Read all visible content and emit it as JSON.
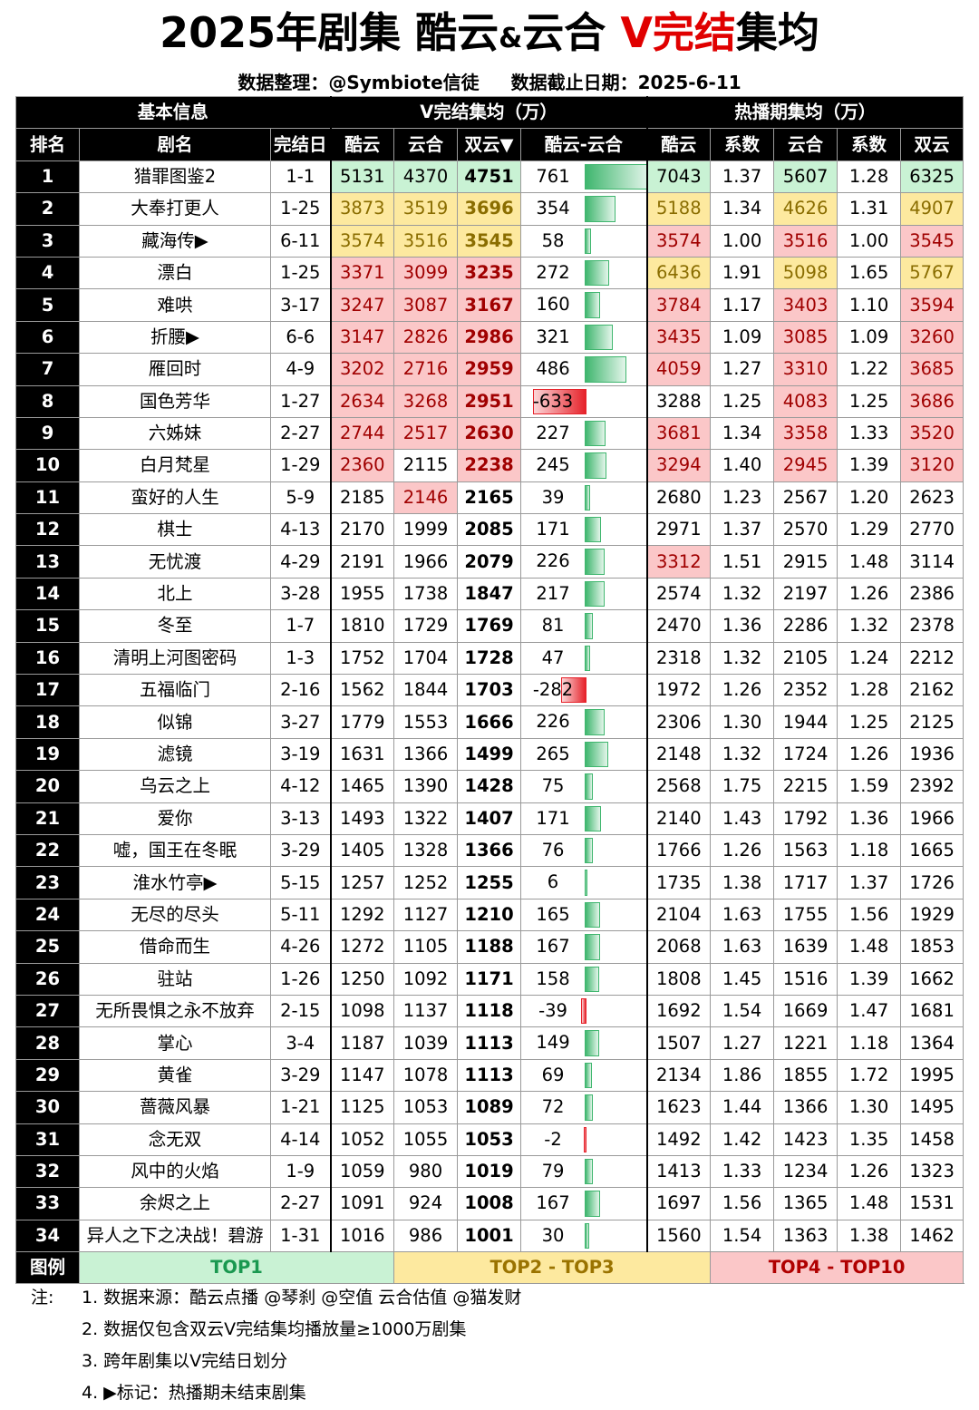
{
  "title": {
    "part1": "2025年剧集 酷云",
    "amp": "&",
    "part2": "云合 ",
    "red": "V完结",
    "part3": "集均"
  },
  "subtitle": {
    "left": "数据整理：@Symbiote信徒",
    "right": "数据截止日期：2025-6-11"
  },
  "groups": {
    "basic": "基本信息",
    "vend": "V完结集均（万）",
    "hot": "热播期集均（万）"
  },
  "headers": {
    "rank": "排名",
    "name": "剧名",
    "date": "完结日",
    "ky": "酷云",
    "yh": "云合",
    "sy": "双云▼",
    "diff": "酷云-云合",
    "hky": "酷云",
    "hk1": "系数",
    "hyh": "云合",
    "hk2": "系数",
    "hsy": "双云"
  },
  "colors": {
    "green": "#c9f2d4",
    "yellow": "#fde99f",
    "red": "#fbc7c8",
    "bar_pos": "#3fb66e",
    "bar_neg": "#e6222a"
  },
  "rows": [
    {
      "rank": "1",
      "name": "猎罪图鉴2",
      "date": "1-1",
      "ky": "5131",
      "yh": "4370",
      "sy": "4751",
      "diff": "761",
      "hky": "7043",
      "hk1": "1.37",
      "hyh": "5607",
      "hk2": "1.28",
      "hsy": "6325",
      "c": [
        "g",
        "g",
        "g",
        "",
        "g",
        "",
        "g",
        "",
        "g"
      ]
    },
    {
      "rank": "2",
      "name": "大奉打更人",
      "date": "1-25",
      "ky": "3873",
      "yh": "3519",
      "sy": "3696",
      "diff": "354",
      "hky": "5188",
      "hk1": "1.34",
      "hyh": "4626",
      "hk2": "1.31",
      "hsy": "4907",
      "c": [
        "y",
        "y",
        "y",
        "",
        "y",
        "",
        "y",
        "",
        "y"
      ]
    },
    {
      "rank": "3",
      "name": "藏海传▶",
      "date": "6-11",
      "ky": "3574",
      "yh": "3516",
      "sy": "3545",
      "diff": "58",
      "hky": "3574",
      "hk1": "1.00",
      "hyh": "3516",
      "hk2": "1.00",
      "hsy": "3545",
      "c": [
        "y",
        "y",
        "y",
        "",
        "r",
        "",
        "r",
        "",
        "r"
      ]
    },
    {
      "rank": "4",
      "name": "漂白",
      "date": "1-25",
      "ky": "3371",
      "yh": "3099",
      "sy": "3235",
      "diff": "272",
      "hky": "6436",
      "hk1": "1.91",
      "hyh": "5098",
      "hk2": "1.65",
      "hsy": "5767",
      "c": [
        "r",
        "r",
        "r",
        "",
        "y",
        "",
        "y",
        "",
        "y"
      ]
    },
    {
      "rank": "5",
      "name": "难哄",
      "date": "3-17",
      "ky": "3247",
      "yh": "3087",
      "sy": "3167",
      "diff": "160",
      "hky": "3784",
      "hk1": "1.17",
      "hyh": "3403",
      "hk2": "1.10",
      "hsy": "3594",
      "c": [
        "r",
        "r",
        "r",
        "",
        "r",
        "",
        "r",
        "",
        "r"
      ]
    },
    {
      "rank": "6",
      "name": "折腰▶",
      "date": "6-6",
      "ky": "3147",
      "yh": "2826",
      "sy": "2986",
      "diff": "321",
      "hky": "3435",
      "hk1": "1.09",
      "hyh": "3085",
      "hk2": "1.09",
      "hsy": "3260",
      "c": [
        "r",
        "r",
        "r",
        "",
        "r",
        "",
        "r",
        "",
        "r"
      ]
    },
    {
      "rank": "7",
      "name": "雁回时",
      "date": "4-9",
      "ky": "3202",
      "yh": "2716",
      "sy": "2959",
      "diff": "486",
      "hky": "4059",
      "hk1": "1.27",
      "hyh": "3310",
      "hk2": "1.22",
      "hsy": "3685",
      "c": [
        "r",
        "r",
        "r",
        "",
        "r",
        "",
        "r",
        "",
        "r"
      ]
    },
    {
      "rank": "8",
      "name": "国色芳华",
      "date": "1-27",
      "ky": "2634",
      "yh": "3268",
      "sy": "2951",
      "diff": "-633",
      "hky": "3288",
      "hk1": "1.25",
      "hyh": "4083",
      "hk2": "1.25",
      "hsy": "3686",
      "c": [
        "r",
        "r",
        "r",
        "",
        "",
        "",
        "r",
        "",
        "r"
      ]
    },
    {
      "rank": "9",
      "name": "六姊妹",
      "date": "2-27",
      "ky": "2744",
      "yh": "2517",
      "sy": "2630",
      "diff": "227",
      "hky": "3681",
      "hk1": "1.34",
      "hyh": "3358",
      "hk2": "1.33",
      "hsy": "3520",
      "c": [
        "r",
        "r",
        "r",
        "",
        "r",
        "",
        "r",
        "",
        "r"
      ]
    },
    {
      "rank": "10",
      "name": "白月梵星",
      "date": "1-29",
      "ky": "2360",
      "yh": "2115",
      "sy": "2238",
      "diff": "245",
      "hky": "3294",
      "hk1": "1.40",
      "hyh": "2945",
      "hk2": "1.39",
      "hsy": "3120",
      "c": [
        "r",
        "",
        "r",
        "",
        "r",
        "",
        "r",
        "",
        "r"
      ]
    },
    {
      "rank": "11",
      "name": "蛮好的人生",
      "date": "5-9",
      "ky": "2185",
      "yh": "2146",
      "sy": "2165",
      "diff": "39",
      "hky": "2680",
      "hk1": "1.23",
      "hyh": "2567",
      "hk2": "1.20",
      "hsy": "2623",
      "c": [
        "",
        "r",
        "",
        "",
        "",
        "",
        "",
        "",
        ""
      ]
    },
    {
      "rank": "12",
      "name": "棋士",
      "date": "4-13",
      "ky": "2170",
      "yh": "1999",
      "sy": "2085",
      "diff": "171",
      "hky": "2971",
      "hk1": "1.37",
      "hyh": "2570",
      "hk2": "1.29",
      "hsy": "2770",
      "c": [
        "",
        "",
        "",
        "",
        "",
        "",
        "",
        "",
        ""
      ]
    },
    {
      "rank": "13",
      "name": "无忧渡",
      "date": "4-29",
      "ky": "2191",
      "yh": "1966",
      "sy": "2079",
      "diff": "226",
      "hky": "3312",
      "hk1": "1.51",
      "hyh": "2915",
      "hk2": "1.48",
      "hsy": "3114",
      "c": [
        "",
        "",
        "",
        "",
        "r",
        "",
        "",
        "",
        ""
      ]
    },
    {
      "rank": "14",
      "name": "北上",
      "date": "3-28",
      "ky": "1955",
      "yh": "1738",
      "sy": "1847",
      "diff": "217",
      "hky": "2574",
      "hk1": "1.32",
      "hyh": "2197",
      "hk2": "1.26",
      "hsy": "2386",
      "c": [
        "",
        "",
        "",
        "",
        "",
        "",
        "",
        "",
        ""
      ]
    },
    {
      "rank": "15",
      "name": "冬至",
      "date": "1-7",
      "ky": "1810",
      "yh": "1729",
      "sy": "1769",
      "diff": "81",
      "hky": "2470",
      "hk1": "1.36",
      "hyh": "2286",
      "hk2": "1.32",
      "hsy": "2378",
      "c": [
        "",
        "",
        "",
        "",
        "",
        "",
        "",
        "",
        ""
      ]
    },
    {
      "rank": "16",
      "name": "清明上河图密码",
      "date": "1-3",
      "ky": "1752",
      "yh": "1704",
      "sy": "1728",
      "diff": "47",
      "hky": "2318",
      "hk1": "1.32",
      "hyh": "2105",
      "hk2": "1.24",
      "hsy": "2212",
      "c": [
        "",
        "",
        "",
        "",
        "",
        "",
        "",
        "",
        ""
      ]
    },
    {
      "rank": "17",
      "name": "五福临门",
      "date": "2-16",
      "ky": "1562",
      "yh": "1844",
      "sy": "1703",
      "diff": "-282",
      "hky": "1972",
      "hk1": "1.26",
      "hyh": "2352",
      "hk2": "1.28",
      "hsy": "2162",
      "c": [
        "",
        "",
        "",
        "",
        "",
        "",
        "",
        "",
        ""
      ]
    },
    {
      "rank": "18",
      "name": "似锦",
      "date": "3-27",
      "ky": "1779",
      "yh": "1553",
      "sy": "1666",
      "diff": "226",
      "hky": "2306",
      "hk1": "1.30",
      "hyh": "1944",
      "hk2": "1.25",
      "hsy": "2125",
      "c": [
        "",
        "",
        "",
        "",
        "",
        "",
        "",
        "",
        ""
      ]
    },
    {
      "rank": "19",
      "name": "滤镜",
      "date": "3-19",
      "ky": "1631",
      "yh": "1366",
      "sy": "1499",
      "diff": "265",
      "hky": "2148",
      "hk1": "1.32",
      "hyh": "1724",
      "hk2": "1.26",
      "hsy": "1936",
      "c": [
        "",
        "",
        "",
        "",
        "",
        "",
        "",
        "",
        ""
      ]
    },
    {
      "rank": "20",
      "name": "乌云之上",
      "date": "4-12",
      "ky": "1465",
      "yh": "1390",
      "sy": "1428",
      "diff": "75",
      "hky": "2568",
      "hk1": "1.75",
      "hyh": "2215",
      "hk2": "1.59",
      "hsy": "2392",
      "c": [
        "",
        "",
        "",
        "",
        "",
        "",
        "",
        "",
        ""
      ]
    },
    {
      "rank": "21",
      "name": "爱你",
      "date": "3-13",
      "ky": "1493",
      "yh": "1322",
      "sy": "1407",
      "diff": "171",
      "hky": "2140",
      "hk1": "1.43",
      "hyh": "1792",
      "hk2": "1.36",
      "hsy": "1966",
      "c": [
        "",
        "",
        "",
        "",
        "",
        "",
        "",
        "",
        ""
      ]
    },
    {
      "rank": "22",
      "name": "嘘，国王在冬眠",
      "date": "3-29",
      "ky": "1405",
      "yh": "1328",
      "sy": "1366",
      "diff": "76",
      "hky": "1766",
      "hk1": "1.26",
      "hyh": "1563",
      "hk2": "1.18",
      "hsy": "1665",
      "c": [
        "",
        "",
        "",
        "",
        "",
        "",
        "",
        "",
        ""
      ]
    },
    {
      "rank": "23",
      "name": "淮水竹亭▶",
      "date": "5-15",
      "ky": "1257",
      "yh": "1252",
      "sy": "1255",
      "diff": "6",
      "hky": "1735",
      "hk1": "1.38",
      "hyh": "1717",
      "hk2": "1.37",
      "hsy": "1726",
      "c": [
        "",
        "",
        "",
        "",
        "",
        "",
        "",
        "",
        ""
      ]
    },
    {
      "rank": "24",
      "name": "无尽的尽头",
      "date": "5-11",
      "ky": "1292",
      "yh": "1127",
      "sy": "1210",
      "diff": "165",
      "hky": "2104",
      "hk1": "1.63",
      "hyh": "1755",
      "hk2": "1.56",
      "hsy": "1929",
      "c": [
        "",
        "",
        "",
        "",
        "",
        "",
        "",
        "",
        ""
      ]
    },
    {
      "rank": "25",
      "name": "借命而生",
      "date": "4-26",
      "ky": "1272",
      "yh": "1105",
      "sy": "1188",
      "diff": "167",
      "hky": "2068",
      "hk1": "1.63",
      "hyh": "1639",
      "hk2": "1.48",
      "hsy": "1853",
      "c": [
        "",
        "",
        "",
        "",
        "",
        "",
        "",
        "",
        ""
      ]
    },
    {
      "rank": "26",
      "name": "驻站",
      "date": "1-26",
      "ky": "1250",
      "yh": "1092",
      "sy": "1171",
      "diff": "158",
      "hky": "1808",
      "hk1": "1.45",
      "hyh": "1516",
      "hk2": "1.39",
      "hsy": "1662",
      "c": [
        "",
        "",
        "",
        "",
        "",
        "",
        "",
        "",
        ""
      ]
    },
    {
      "rank": "27",
      "name": "无所畏惧之永不放弃",
      "date": "2-15",
      "ky": "1098",
      "yh": "1137",
      "sy": "1118",
      "diff": "-39",
      "hky": "1692",
      "hk1": "1.54",
      "hyh": "1669",
      "hk2": "1.47",
      "hsy": "1681",
      "c": [
        "",
        "",
        "",
        "",
        "",
        "",
        "",
        "",
        ""
      ]
    },
    {
      "rank": "28",
      "name": "掌心",
      "date": "3-4",
      "ky": "1187",
      "yh": "1039",
      "sy": "1113",
      "diff": "149",
      "hky": "1507",
      "hk1": "1.27",
      "hyh": "1221",
      "hk2": "1.18",
      "hsy": "1364",
      "c": [
        "",
        "",
        "",
        "",
        "",
        "",
        "",
        "",
        ""
      ]
    },
    {
      "rank": "29",
      "name": "黄雀",
      "date": "3-29",
      "ky": "1147",
      "yh": "1078",
      "sy": "1113",
      "diff": "69",
      "hky": "2134",
      "hk1": "1.86",
      "hyh": "1855",
      "hk2": "1.72",
      "hsy": "1995",
      "c": [
        "",
        "",
        "",
        "",
        "",
        "",
        "",
        "",
        ""
      ]
    },
    {
      "rank": "30",
      "name": "蔷薇风暴",
      "date": "1-21",
      "ky": "1125",
      "yh": "1053",
      "sy": "1089",
      "diff": "72",
      "hky": "1623",
      "hk1": "1.44",
      "hyh": "1366",
      "hk2": "1.30",
      "hsy": "1495",
      "c": [
        "",
        "",
        "",
        "",
        "",
        "",
        "",
        "",
        ""
      ]
    },
    {
      "rank": "31",
      "name": "念无双",
      "date": "4-14",
      "ky": "1052",
      "yh": "1055",
      "sy": "1053",
      "diff": "-2",
      "hky": "1492",
      "hk1": "1.42",
      "hyh": "1423",
      "hk2": "1.35",
      "hsy": "1458",
      "c": [
        "",
        "",
        "",
        "",
        "",
        "",
        "",
        "",
        ""
      ]
    },
    {
      "rank": "32",
      "name": "风中的火焰",
      "date": "1-9",
      "ky": "1059",
      "yh": "980",
      "sy": "1019",
      "diff": "79",
      "hky": "1413",
      "hk1": "1.33",
      "hyh": "1234",
      "hk2": "1.26",
      "hsy": "1323",
      "c": [
        "",
        "",
        "",
        "",
        "",
        "",
        "",
        "",
        ""
      ]
    },
    {
      "rank": "33",
      "name": "余烬之上",
      "date": "2-27",
      "ky": "1091",
      "yh": "924",
      "sy": "1008",
      "diff": "167",
      "hky": "1697",
      "hk1": "1.56",
      "hyh": "1365",
      "hk2": "1.48",
      "hsy": "1531",
      "c": [
        "",
        "",
        "",
        "",
        "",
        "",
        "",
        "",
        ""
      ]
    },
    {
      "rank": "34",
      "name": "异人之下之决战！碧游",
      "date": "1-31",
      "ky": "1016",
      "yh": "986",
      "sy": "1001",
      "diff": "30",
      "hky": "1560",
      "hk1": "1.54",
      "hyh": "1363",
      "hk2": "1.38",
      "hsy": "1462",
      "c": [
        "",
        "",
        "",
        "",
        "",
        "",
        "",
        "",
        ""
      ]
    }
  ],
  "legend": {
    "label": "图例",
    "top1": "TOP1",
    "top23": "TOP2 - TOP3",
    "top410": "TOP4 - TOP10"
  },
  "notes": {
    "label": "注:",
    "items": [
      "1. 数据来源：酷云点播 @琴刹 @空值  云合估值 @猫发财",
      "2. 数据仅包含双云V完结集均播放量≥1000万剧集",
      "3. 跨年剧集以V完结日划分",
      "4. ▶标记：热播期未结束剧集"
    ]
  }
}
